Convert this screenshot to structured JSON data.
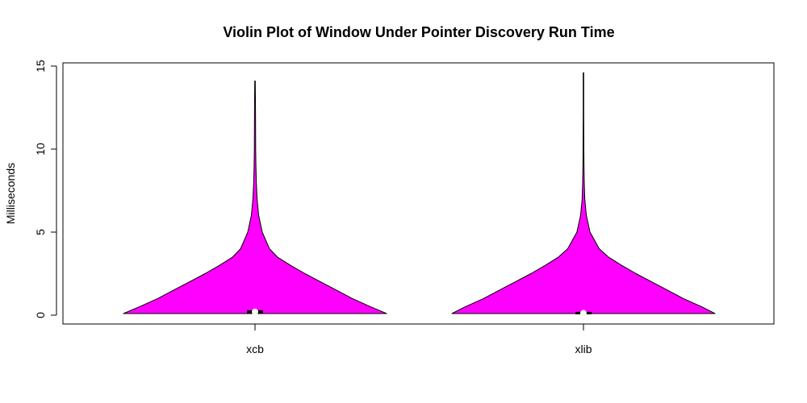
{
  "chart_data": {
    "type": "violin",
    "title": "Violin Plot of Window Under Pointer Discovery Run Time",
    "xlabel": "",
    "ylabel": "Milliseconds",
    "ylim": [
      -0.5,
      15.2
    ],
    "yticks": [
      0,
      5,
      10,
      15
    ],
    "ytick_labels": [
      "0",
      "5",
      "10",
      "15"
    ],
    "grid": false,
    "legend": "none",
    "fill_color": "#ff00ff",
    "categories": [
      "xcb",
      "xlib"
    ],
    "series": [
      {
        "category": "xcb",
        "min": 0.1,
        "q1": 0.12,
        "median": 0.2,
        "q3": 0.25,
        "max": 14.1,
        "profile": [
          [
            0.1,
            1.0
          ],
          [
            0.5,
            0.88
          ],
          [
            1.0,
            0.74
          ],
          [
            1.5,
            0.62
          ],
          [
            2.0,
            0.5
          ],
          [
            2.5,
            0.38
          ],
          [
            3.0,
            0.27
          ],
          [
            3.5,
            0.17
          ],
          [
            4.0,
            0.11
          ],
          [
            5.0,
            0.055
          ],
          [
            6.0,
            0.028
          ],
          [
            7.0,
            0.016
          ],
          [
            8.0,
            0.01
          ],
          [
            9.0,
            0.007
          ],
          [
            10.0,
            0.005
          ],
          [
            12.0,
            0.004
          ],
          [
            14.1,
            0.002
          ]
        ]
      },
      {
        "category": "xlib",
        "min": 0.1,
        "q1": 0.1,
        "median": 0.12,
        "q3": 0.15,
        "max": 14.6,
        "profile": [
          [
            0.1,
            1.0
          ],
          [
            0.5,
            0.9
          ],
          [
            1.0,
            0.76
          ],
          [
            1.5,
            0.64
          ],
          [
            2.0,
            0.52
          ],
          [
            2.5,
            0.4
          ],
          [
            3.0,
            0.29
          ],
          [
            3.5,
            0.19
          ],
          [
            4.0,
            0.12
          ],
          [
            5.0,
            0.05
          ],
          [
            6.0,
            0.022
          ],
          [
            7.0,
            0.01
          ],
          [
            8.0,
            0.006
          ],
          [
            9.0,
            0.004
          ],
          [
            10.0,
            0.003
          ],
          [
            12.0,
            0.002
          ],
          [
            14.6,
            0.002
          ]
        ]
      }
    ]
  }
}
